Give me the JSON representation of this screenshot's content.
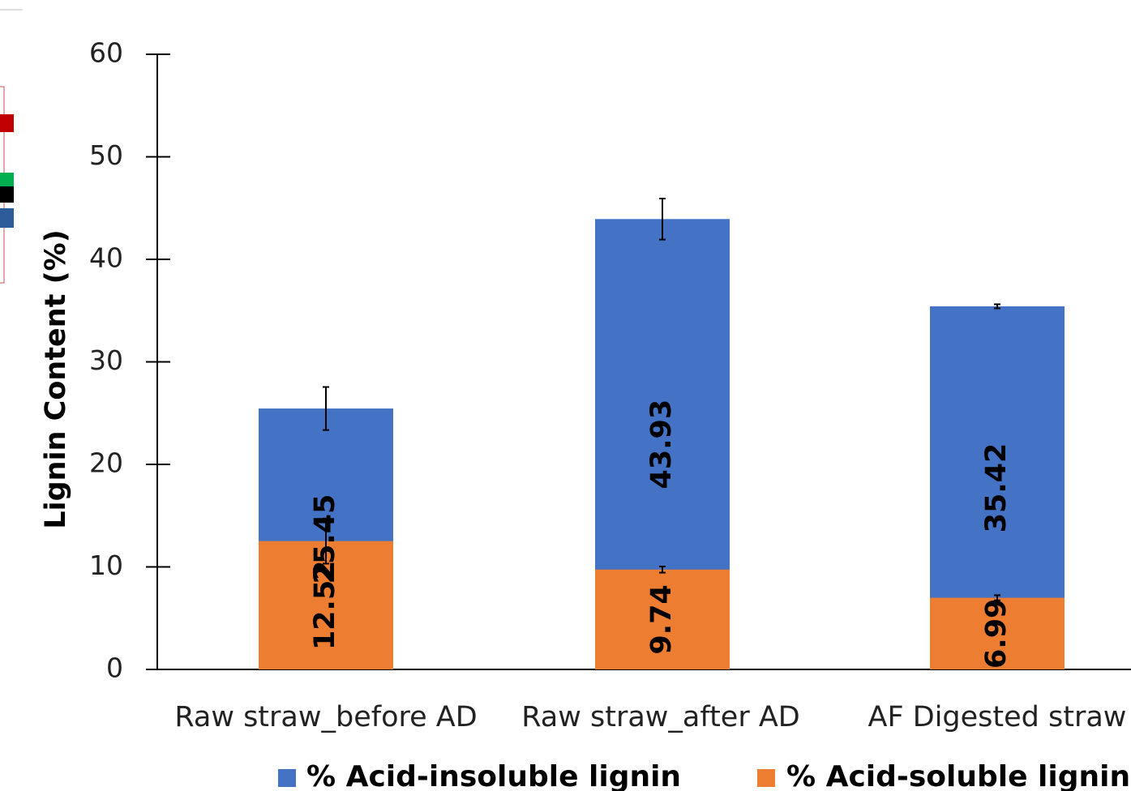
{
  "chart_data": {
    "type": "bar",
    "stacked": true,
    "categories": [
      "Raw straw_before AD",
      "Raw straw_after AD",
      "AF Digested straw"
    ],
    "series": [
      {
        "name": "% Acid-insoluble lignin",
        "values": [
          25.45,
          43.93,
          35.42
        ],
        "error": [
          2.1,
          2.0,
          0.2
        ],
        "color": "#4472C4"
      },
      {
        "name": "% Acid-soluble lignin",
        "values": [
          12.52,
          9.74,
          6.99
        ],
        "error": [
          2.2,
          0.3,
          0.25
        ],
        "color": "#ED7D31"
      }
    ],
    "ylabel": "Lignin Content (%)",
    "xlabel": "",
    "ylim": [
      0,
      60
    ],
    "yticks": [
      0,
      10,
      20,
      30,
      40,
      50,
      60
    ],
    "legend_position": "bottom",
    "grid": false
  },
  "edge_fragment": {
    "marker_colors": [
      "#C00000",
      "#00B050",
      "#000000",
      "#2E5C9A"
    ]
  }
}
